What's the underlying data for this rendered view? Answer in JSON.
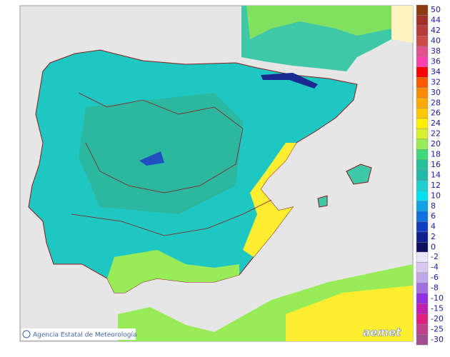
{
  "legend": {
    "upper": [
      {
        "label": "50",
        "color": "#8b3a12"
      },
      {
        "label": "44",
        "color": "#a33028"
      },
      {
        "label": "42",
        "color": "#b83a3a"
      },
      {
        "label": "40",
        "color": "#cc4a4a"
      },
      {
        "label": "38",
        "color": "#e0508a"
      },
      {
        "label": "36",
        "color": "#ff40b0"
      },
      {
        "label": "34",
        "color": "#ff0000"
      },
      {
        "label": "32",
        "color": "#ff5a00"
      },
      {
        "label": "30",
        "color": "#ff8c00"
      },
      {
        "label": "28",
        "color": "#ffa800"
      },
      {
        "label": "26",
        "color": "#ffc800"
      },
      {
        "label": "24",
        "color": "#ffee00"
      },
      {
        "label": "22",
        "color": "#d8f030"
      },
      {
        "label": "20",
        "color": "#98ec58"
      },
      {
        "label": "18",
        "color": "#40d878"
      },
      {
        "label": "16",
        "color": "#28c098"
      },
      {
        "label": "14",
        "color": "#22b8aa"
      },
      {
        "label": "12",
        "color": "#20d0d0"
      },
      {
        "label": "10",
        "color": "#00e0f0"
      },
      {
        "label": "8",
        "color": "#10a0e8"
      },
      {
        "label": "6",
        "color": "#1070e0"
      },
      {
        "label": "4",
        "color": "#1040c0"
      },
      {
        "label": "2",
        "color": "#102090"
      },
      {
        "label": "0",
        "color": "#101060"
      }
    ],
    "lower": [
      {
        "label": "-2",
        "color": "#ece4f8"
      },
      {
        "label": "-4",
        "color": "#d8c8f0"
      },
      {
        "label": "-6",
        "color": "#c0a8e8"
      },
      {
        "label": "-8",
        "color": "#a070e0"
      },
      {
        "label": "-10",
        "color": "#9030e0"
      },
      {
        "label": "-15",
        "color": "#c020b0"
      },
      {
        "label": "-20",
        "color": "#e02080"
      },
      {
        "label": "-25",
        "color": "#c0408a"
      },
      {
        "label": "-30",
        "color": "#a05090"
      }
    ]
  },
  "footer": {
    "credit": "Agencia Estatal de Meteorología",
    "logo": "aemet"
  }
}
